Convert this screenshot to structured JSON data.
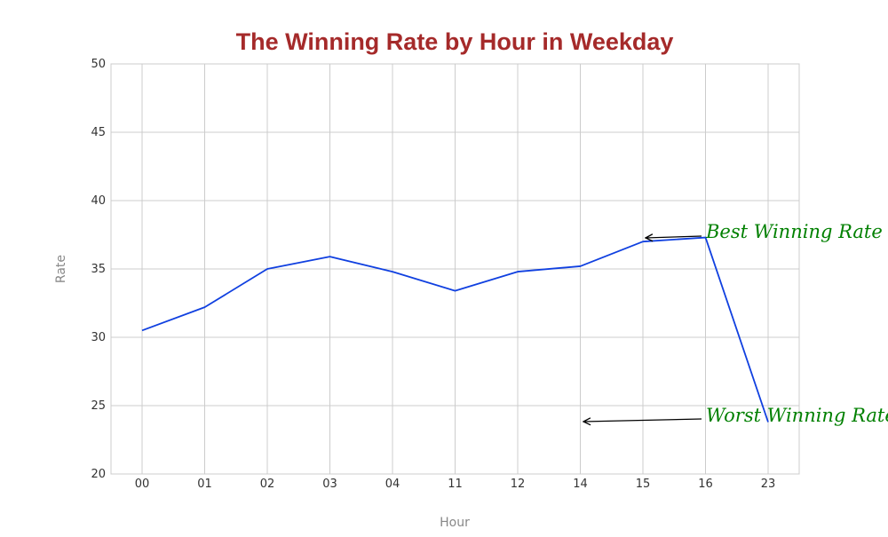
{
  "chart_data": {
    "type": "line",
    "title": "The Winning Rate by Hour in Weekday",
    "xlabel": "Hour",
    "ylabel": "Rate",
    "categories": [
      "00",
      "01",
      "02",
      "03",
      "04",
      "11",
      "12",
      "14",
      "15",
      "16",
      "23"
    ],
    "values": [
      30.5,
      32.2,
      35.0,
      35.9,
      34.8,
      33.4,
      34.8,
      35.2,
      37.0,
      37.3,
      23.8
    ],
    "ylim": [
      20,
      50
    ],
    "yticks": [
      20,
      25,
      30,
      35,
      40,
      45,
      50
    ],
    "grid": true,
    "annotations": [
      {
        "text": "Best Winning Rate",
        "x": "15",
        "y": 37.3
      },
      {
        "text": "Worst Winning Rate",
        "x": "14",
        "y": 23.8
      }
    ]
  },
  "colors": {
    "title": "#a52a2a",
    "line": "#1040e0",
    "annotation": "#008000",
    "grid": "#cccccc",
    "axis_label": "#888888"
  }
}
